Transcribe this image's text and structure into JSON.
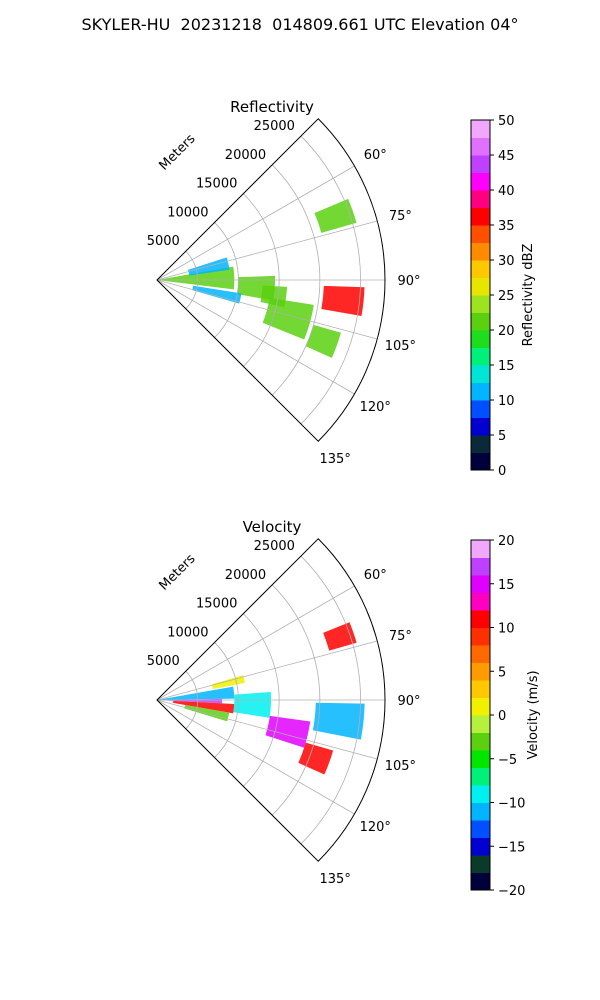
{
  "title": "SKYLER-HU  20231218  014809.661 UTC Elevation 04°",
  "chart_data": [
    {
      "type": "heatmap",
      "title": "Reflectivity",
      "radial_label": "Meters",
      "radial_ticks": [
        5000,
        10000,
        15000,
        20000,
        25000
      ],
      "radial_tick_labels": [
        "5000",
        "10000",
        "15000",
        "20000",
        "25000"
      ],
      "angle_ticks": [
        60,
        75,
        90,
        105,
        120,
        135
      ],
      "angle_tick_labels": [
        "60°",
        "75°",
        "90°",
        "105°",
        "120°",
        "135°"
      ],
      "theta_range": [
        45,
        135
      ],
      "r_max": 28000,
      "colorbar": {
        "label": "Reflectivity dBZ",
        "range": [
          0,
          50
        ],
        "ticks": [
          0,
          5,
          10,
          15,
          20,
          25,
          30,
          35,
          40,
          45,
          50
        ],
        "tick_labels": [
          "0",
          "5",
          "10",
          "15",
          "20",
          "25",
          "30",
          "35",
          "40",
          "45",
          "50"
        ]
      },
      "echo_regions": [
        {
          "theta_from": 80,
          "theta_to": 97,
          "r_from": 0,
          "r_to": 9500,
          "value": 20
        },
        {
          "theta_from": 72,
          "theta_to": 82,
          "r_from": 4000,
          "r_to": 9000,
          "value": 12
        },
        {
          "theta_from": 88,
          "theta_to": 100,
          "r_from": 10000,
          "r_to": 14500,
          "value": 20
        },
        {
          "theta_from": 93,
          "theta_to": 102,
          "r_from": 13000,
          "r_to": 16000,
          "value": 20
        },
        {
          "theta_from": 99,
          "theta_to": 106,
          "r_from": 4500,
          "r_to": 10500,
          "value": 12
        },
        {
          "theta_from": 99,
          "theta_to": 112,
          "r_from": 14000,
          "r_to": 19500,
          "value": 22
        },
        {
          "theta_from": 92,
          "theta_to": 100,
          "r_from": 20500,
          "r_to": 25500,
          "value": 35
        },
        {
          "theta_from": 67,
          "theta_to": 74,
          "r_from": 21000,
          "r_to": 25500,
          "value": 20
        },
        {
          "theta_from": 106,
          "theta_to": 114,
          "r_from": 20000,
          "r_to": 23500,
          "value": 22
        }
      ]
    },
    {
      "type": "heatmap",
      "title": "Velocity",
      "radial_label": "Meters",
      "radial_ticks": [
        5000,
        10000,
        15000,
        20000,
        25000
      ],
      "radial_tick_labels": [
        "5000",
        "10000",
        "15000",
        "20000",
        "25000"
      ],
      "angle_ticks": [
        60,
        75,
        90,
        105,
        120,
        135
      ],
      "angle_tick_labels": [
        "60°",
        "75°",
        "90°",
        "105°",
        "120°",
        "135°"
      ],
      "theta_range": [
        45,
        135
      ],
      "r_max": 28000,
      "colorbar": {
        "label": "Velocity (m/s)",
        "range": [
          -20,
          20
        ],
        "ticks": [
          -20,
          -15,
          -10,
          -5,
          0,
          5,
          10,
          15,
          20
        ],
        "tick_labels": [
          "−20",
          "−15",
          "−10",
          "−5",
          "0",
          "5",
          "10",
          "15",
          "20"
        ]
      },
      "echo_regions": [
        {
          "theta_from": 80,
          "theta_to": 89,
          "r_from": 0,
          "r_to": 9500,
          "value": -12
        },
        {
          "theta_from": 89,
          "theta_to": 93,
          "r_from": 0,
          "r_to": 8000,
          "value": 16
        },
        {
          "theta_from": 93,
          "theta_to": 100,
          "r_from": 2000,
          "r_to": 9500,
          "value": 10
        },
        {
          "theta_from": 100,
          "theta_to": 107,
          "r_from": 3500,
          "r_to": 9000,
          "value": -3
        },
        {
          "theta_from": 86,
          "theta_to": 99,
          "r_from": 9500,
          "r_to": 14000,
          "value": -10
        },
        {
          "theta_from": 98,
          "theta_to": 108,
          "r_from": 14000,
          "r_to": 19000,
          "value": 15
        },
        {
          "theta_from": 91,
          "theta_to": 101,
          "r_from": 19500,
          "r_to": 25500,
          "value": -12
        },
        {
          "theta_from": 68,
          "theta_to": 74,
          "r_from": 22000,
          "r_to": 25500,
          "value": 11
        },
        {
          "theta_from": 106,
          "theta_to": 114,
          "r_from": 19000,
          "r_to": 22500,
          "value": 11
        },
        {
          "theta_from": 74,
          "theta_to": 79,
          "r_from": 7000,
          "r_to": 11000,
          "value": 1
        }
      ]
    }
  ]
}
